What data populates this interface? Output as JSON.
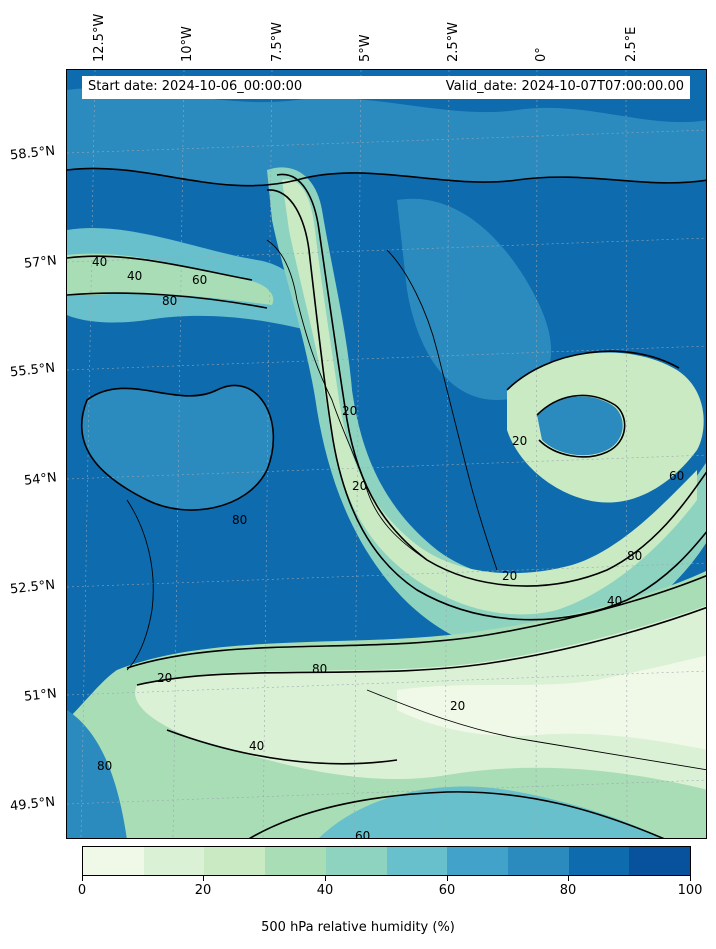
{
  "header": {
    "start_date": "Start date: 2024-10-06_00:00:00",
    "valid_date": "Valid_date: 2024-10-07T07:00:00.00"
  },
  "longitude_labels": [
    "12.5°W",
    "10°W",
    "7.5°W",
    "5°W",
    "2.5°W",
    "0°",
    "2.5°E"
  ],
  "latitude_labels": [
    "58.5°N",
    "57°N",
    "55.5°N",
    "54°N",
    "52.5°N",
    "51°N",
    "49.5°N"
  ],
  "contour_labels": [
    "40",
    "40",
    "60",
    "80",
    "80",
    "20",
    "20",
    "20",
    "20",
    "40",
    "60",
    "80",
    "80",
    "20",
    "20",
    "40",
    "60",
    "80"
  ],
  "colorbar": {
    "label": "500 hPa relative humidity (%)",
    "ticks": [
      "0",
      "20",
      "40",
      "60",
      "80",
      "100"
    ],
    "colors": [
      "#f0f9e8",
      "#dbf1d5",
      "#c9eac2",
      "#a8ddb5",
      "#8dd3c0",
      "#67c0cb",
      "#43a2ca",
      "#2c8bbe",
      "#0e6bae",
      "#08519c"
    ]
  },
  "map_colors": {
    "ocean_deep": "#0e6bae",
    "mid": "#2c8bbe",
    "light": "#8dd3c0",
    "dry": "#dbf1d5",
    "very_dry": "#f0f9e8"
  }
}
